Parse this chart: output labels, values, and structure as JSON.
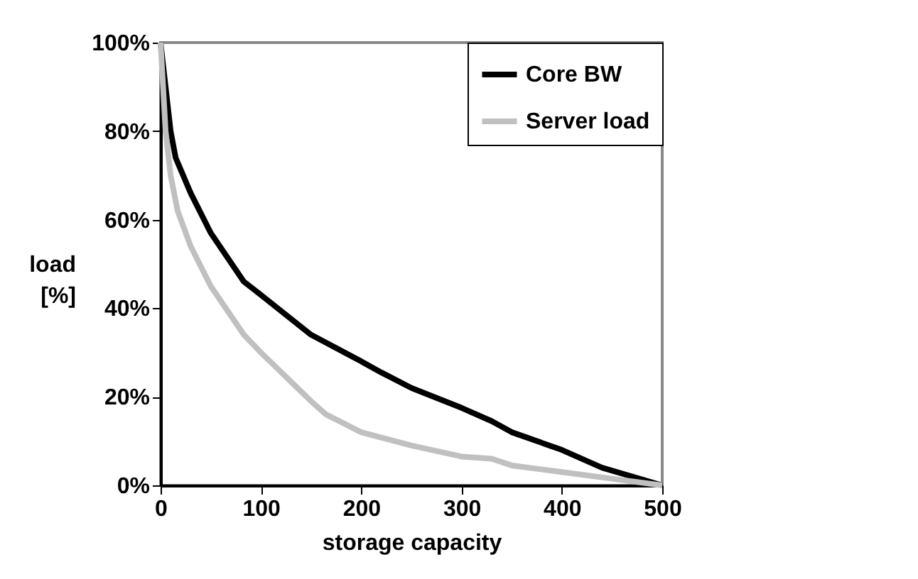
{
  "chart_data": {
    "type": "line",
    "xlabel": "storage capacity",
    "ylabel": "load [%]",
    "xlim": [
      0,
      500
    ],
    "xticks": [
      0,
      100,
      200,
      300,
      400,
      500
    ],
    "ylim": [
      0,
      100
    ],
    "yticks": [
      {
        "value": 0,
        "label": "0%"
      },
      {
        "value": 20,
        "label": "20%"
      },
      {
        "value": 40,
        "label": "40%"
      },
      {
        "value": 60,
        "label": "60%"
      },
      {
        "value": 80,
        "label": "80%"
      },
      {
        "value": 100,
        "label": "100%"
      }
    ],
    "legend": "top right",
    "grid": false,
    "marker": "none",
    "line_style": "solid",
    "series": [
      {
        "name": "Core BW",
        "color": "#000000",
        "x": [
          0,
          5,
          10,
          15,
          30,
          50,
          83,
          100,
          150,
          200,
          220,
          250,
          300,
          330,
          350,
          400,
          440,
          500
        ],
        "values": [
          100,
          90,
          80,
          74,
          66,
          57,
          46,
          43,
          34,
          28,
          25.5,
          22,
          17.5,
          14.5,
          12,
          8,
          4,
          0
        ]
      },
      {
        "name": "Server load",
        "color": "#c0c0c0",
        "x": [
          0,
          5,
          10,
          17,
          30,
          50,
          83,
          100,
          150,
          165,
          200,
          250,
          300,
          330,
          350,
          400,
          450,
          500
        ],
        "values": [
          100,
          80,
          70,
          62,
          54,
          45,
          34,
          30,
          19,
          16,
          12,
          9,
          6.5,
          6,
          4.5,
          3,
          1.5,
          0
        ]
      }
    ]
  }
}
